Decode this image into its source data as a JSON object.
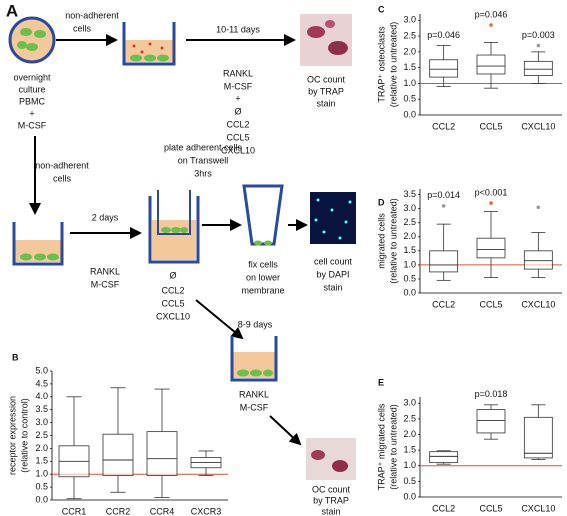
{
  "diagram": {
    "panel_label": "A",
    "pbmc": [
      "overnight",
      "culture",
      "PBMC",
      "+",
      "M-CSF"
    ],
    "non_adherent_top": [
      "non-adherent",
      "cells"
    ],
    "duration_top": "10-11 days",
    "treatments_top": [
      "RANKL",
      "M-CSF",
      "+",
      "Ø",
      "CCL2",
      "CCL5",
      "CXCL10"
    ],
    "oc_top": [
      "OC count",
      "by TRAP",
      "stain"
    ],
    "non_adherent_down": [
      "non-adherent",
      "cells"
    ],
    "duration_mid": "2 days",
    "treatments_mid": [
      "RANKL",
      "M-CSF"
    ],
    "transwell": [
      "plate adherent cells",
      "on Transwell",
      "3hrs"
    ],
    "chemokines": [
      "Ø",
      "CCL2",
      "CCL5",
      "CXCL10"
    ],
    "fix": [
      "fix cells",
      "on lower",
      "membrane"
    ],
    "dapi": [
      "cell count",
      "by DAPI",
      "stain"
    ],
    "duration_low": "8-9 days",
    "treatments_low": [
      "RANKL",
      "M-CSF"
    ],
    "oc_low": [
      "OC count",
      "by TRAP",
      "stain"
    ]
  },
  "chart_data": [
    {
      "type": "box",
      "panel_label": "B",
      "ylabel": [
        "receptor expression",
        "(relative to control)"
      ],
      "categories": [
        "CCR1",
        "CCR2",
        "CCR4",
        "CXCR3"
      ],
      "boxes": [
        {
          "min": 0.05,
          "q1": 0.9,
          "median": 1.5,
          "q3": 2.1,
          "max": 4.0
        },
        {
          "min": 0.3,
          "q1": 0.95,
          "median": 1.55,
          "q3": 2.55,
          "max": 4.35
        },
        {
          "min": 0.1,
          "q1": 0.95,
          "median": 1.6,
          "q3": 2.65,
          "max": 4.3
        },
        {
          "min": 0.95,
          "q1": 1.25,
          "median": 1.45,
          "q3": 1.65,
          "max": 1.9
        }
      ],
      "ylim": [
        0,
        5
      ],
      "yticks": [
        {
          "value": 0,
          "label": "0.0"
        },
        0.5,
        {
          "value": 1,
          "label": "1.0"
        },
        1.5,
        {
          "value": 2,
          "label": "2.0"
        },
        2.5,
        {
          "value": 3,
          "label": "3.0"
        },
        3.5,
        {
          "value": 4,
          "label": "4.0"
        },
        4.5,
        {
          "value": 5,
          "label": "5.0"
        }
      ],
      "refline": 1,
      "refline_color": "#e0503c",
      "box_fill": "#ffffff"
    },
    {
      "type": "box",
      "panel_label": "C",
      "ylabel": [
        "TRAP⁺ osteoclasts",
        "(relative to untreated)"
      ],
      "categories": [
        "CCL2",
        "CCL5",
        "CXCL10"
      ],
      "boxes": [
        {
          "min": 0.9,
          "q1": 1.2,
          "median": 1.45,
          "q3": 1.75,
          "max": 2.2
        },
        {
          "min": 0.85,
          "q1": 1.3,
          "median": 1.55,
          "q3": 1.9,
          "max": 2.3,
          "outliers": [
            2.85
          ],
          "outlier_color": "#e07030"
        },
        {
          "min": 1.0,
          "q1": 1.25,
          "median": 1.45,
          "q3": 1.7,
          "max": 2.0,
          "outliers": [
            2.2
          ],
          "outlier_color": "#999999"
        }
      ],
      "annotations": [
        {
          "text": "p=0.046",
          "category": 0
        },
        {
          "text": "p=0.046",
          "category": 1
        },
        {
          "text": "p=0.003",
          "category": 2
        }
      ],
      "ylim": [
        0,
        3.2
      ],
      "yticks": [
        {
          "value": 0,
          "label": "0.0"
        },
        0.5,
        {
          "value": 1,
          "label": "1.0"
        },
        1.5,
        {
          "value": 2,
          "label": "2.0"
        },
        2.5,
        {
          "value": 3,
          "label": "3.0"
        }
      ],
      "refline": 1,
      "refline_color": "#e0503c",
      "box_fill": "#ffffff"
    },
    {
      "type": "box",
      "panel_label": "D",
      "ylabel": [
        "migrated cells",
        "(relative to untreated)"
      ],
      "categories": [
        "CCL2",
        "CCL5",
        "CXCL10"
      ],
      "boxes": [
        {
          "min": 0.45,
          "q1": 0.75,
          "median": 1.0,
          "q3": 1.5,
          "max": 2.45,
          "outliers": [
            3.1
          ],
          "outlier_color": "#999999"
        },
        {
          "min": 0.55,
          "q1": 1.25,
          "median": 1.55,
          "q3": 1.95,
          "max": 2.9,
          "outliers": [
            3.2
          ],
          "outlier_color": "#e07030"
        },
        {
          "min": 0.55,
          "q1": 0.85,
          "median": 1.15,
          "q3": 1.5,
          "max": 2.15,
          "outliers": [
            3.05
          ],
          "outlier_color": "#999999"
        }
      ],
      "annotations": [
        {
          "text": "p=0.014",
          "category": 0
        },
        {
          "text": "p<0.001",
          "category": 1
        }
      ],
      "ylim": [
        0,
        3.7
      ],
      "yticks": [
        {
          "value": 0,
          "label": "0.0"
        },
        0.5,
        {
          "value": 1,
          "label": "1.0"
        },
        1.5,
        {
          "value": 2,
          "label": "2.0"
        },
        2.5,
        {
          "value": 3,
          "label": "3.0"
        },
        3.5
      ],
      "refline": 1,
      "refline_color": "#e0503c",
      "box_fill": "#ffffff"
    },
    {
      "type": "box",
      "panel_label": "E",
      "ylabel": [
        "TRAP⁺ migrated cells",
        "(relative to untreated)"
      ],
      "categories": [
        "CCL2",
        "CCL5",
        "CXCL10"
      ],
      "boxes": [
        {
          "min": 1.05,
          "q1": 1.1,
          "median": 1.3,
          "q3": 1.45,
          "max": 1.48
        },
        {
          "min": 1.85,
          "q1": 2.05,
          "median": 2.45,
          "q3": 2.8,
          "max": 2.95
        },
        {
          "min": 1.2,
          "q1": 1.25,
          "median": 1.4,
          "q3": 2.55,
          "max": 2.95
        }
      ],
      "annotations": [
        {
          "text": "p=0.018",
          "category": 1
        }
      ],
      "ylim": [
        0,
        3.2
      ],
      "yticks": [
        {
          "value": 0,
          "label": "0.0"
        },
        0.5,
        {
          "value": 1,
          "label": "1.0"
        },
        1.5,
        {
          "value": 2,
          "label": "2.0"
        },
        2.5,
        {
          "value": 3,
          "label": "3.0"
        }
      ],
      "refline": 1,
      "refline_color": "#e0503c",
      "box_fill": "#ffffff"
    }
  ]
}
